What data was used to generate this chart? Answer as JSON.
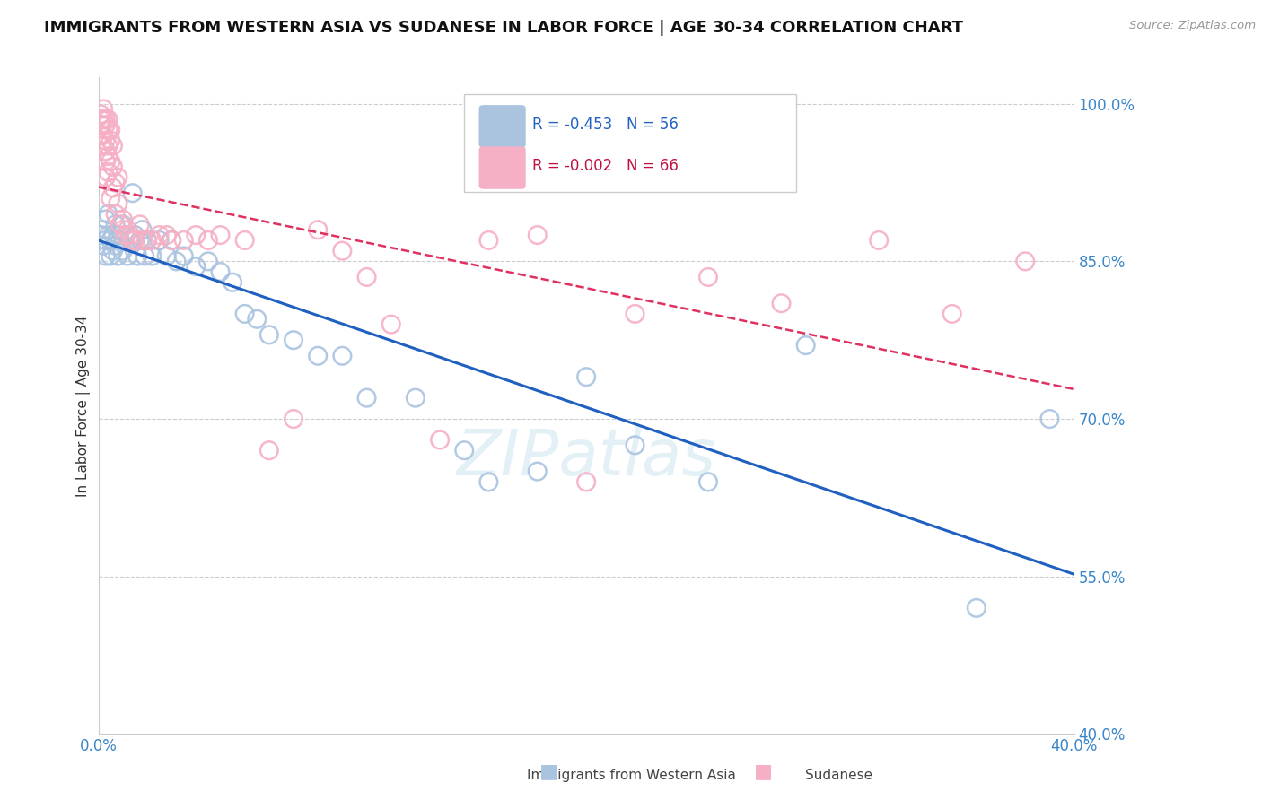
{
  "title": "IMMIGRANTS FROM WESTERN ASIA VS SUDANESE IN LABOR FORCE | AGE 30-34 CORRELATION CHART",
  "source": "Source: ZipAtlas.com",
  "ylabel": "In Labor Force | Age 30-34",
  "xlim": [
    0.0,
    0.4
  ],
  "ylim": [
    0.4,
    1.025
  ],
  "yticks": [
    0.4,
    0.55,
    0.7,
    0.85,
    1.0
  ],
  "ytick_labels": [
    "40.0%",
    "55.0%",
    "70.0%",
    "85.0%",
    "100.0%"
  ],
  "blue_label": "Immigrants from Western Asia",
  "pink_label": "Sudanese",
  "legend_r_blue": "-0.453",
  "legend_n_blue": "56",
  "legend_r_pink": "-0.002",
  "legend_n_pink": "66",
  "blue_color": "#aac4e0",
  "pink_color": "#f5b0c5",
  "blue_line_color": "#2060c0",
  "pink_line_color": "#e03060",
  "watermark": "ZIPatlas",
  "blue_x": [
    0.001,
    0.002,
    0.002,
    0.003,
    0.003,
    0.003,
    0.004,
    0.004,
    0.005,
    0.005,
    0.006,
    0.006,
    0.007,
    0.007,
    0.008,
    0.008,
    0.009,
    0.01,
    0.01,
    0.011,
    0.012,
    0.013,
    0.014,
    0.015,
    0.016,
    0.017,
    0.018,
    0.019,
    0.02,
    0.022,
    0.025,
    0.028,
    0.03,
    0.032,
    0.035,
    0.04,
    0.045,
    0.05,
    0.055,
    0.06,
    0.065,
    0.07,
    0.08,
    0.09,
    0.1,
    0.11,
    0.13,
    0.15,
    0.16,
    0.18,
    0.2,
    0.22,
    0.25,
    0.29,
    0.36,
    0.39
  ],
  "blue_y": [
    0.875,
    0.88,
    0.865,
    0.89,
    0.87,
    0.855,
    0.895,
    0.875,
    0.87,
    0.855,
    0.875,
    0.86,
    0.885,
    0.865,
    0.875,
    0.855,
    0.87,
    0.885,
    0.86,
    0.875,
    0.855,
    0.87,
    0.915,
    0.875,
    0.855,
    0.87,
    0.88,
    0.855,
    0.87,
    0.855,
    0.87,
    0.855,
    0.87,
    0.85,
    0.855,
    0.845,
    0.85,
    0.84,
    0.83,
    0.8,
    0.795,
    0.78,
    0.775,
    0.76,
    0.76,
    0.72,
    0.72,
    0.67,
    0.64,
    0.65,
    0.74,
    0.675,
    0.64,
    0.77,
    0.52,
    0.7
  ],
  "pink_x": [
    0.001,
    0.001,
    0.001,
    0.001,
    0.001,
    0.002,
    0.002,
    0.002,
    0.002,
    0.003,
    0.003,
    0.003,
    0.003,
    0.003,
    0.003,
    0.004,
    0.004,
    0.004,
    0.004,
    0.004,
    0.005,
    0.005,
    0.005,
    0.005,
    0.006,
    0.006,
    0.006,
    0.007,
    0.007,
    0.008,
    0.008,
    0.009,
    0.01,
    0.011,
    0.012,
    0.013,
    0.014,
    0.015,
    0.017,
    0.018,
    0.02,
    0.022,
    0.025,
    0.028,
    0.03,
    0.035,
    0.04,
    0.045,
    0.05,
    0.06,
    0.07,
    0.08,
    0.09,
    0.1,
    0.11,
    0.12,
    0.14,
    0.16,
    0.18,
    0.2,
    0.22,
    0.25,
    0.28,
    0.32,
    0.35,
    0.38
  ],
  "pink_y": [
    0.99,
    0.985,
    0.98,
    0.97,
    0.96,
    0.995,
    0.985,
    0.97,
    0.96,
    0.985,
    0.98,
    0.965,
    0.955,
    0.945,
    0.93,
    0.985,
    0.975,
    0.96,
    0.95,
    0.935,
    0.975,
    0.965,
    0.945,
    0.91,
    0.96,
    0.94,
    0.92,
    0.925,
    0.895,
    0.93,
    0.905,
    0.885,
    0.89,
    0.875,
    0.88,
    0.875,
    0.87,
    0.87,
    0.885,
    0.87,
    0.87,
    0.87,
    0.875,
    0.875,
    0.87,
    0.87,
    0.875,
    0.87,
    0.875,
    0.87,
    0.67,
    0.7,
    0.88,
    0.86,
    0.835,
    0.79,
    0.68,
    0.87,
    0.875,
    0.64,
    0.8,
    0.835,
    0.81,
    0.87,
    0.8,
    0.85
  ]
}
